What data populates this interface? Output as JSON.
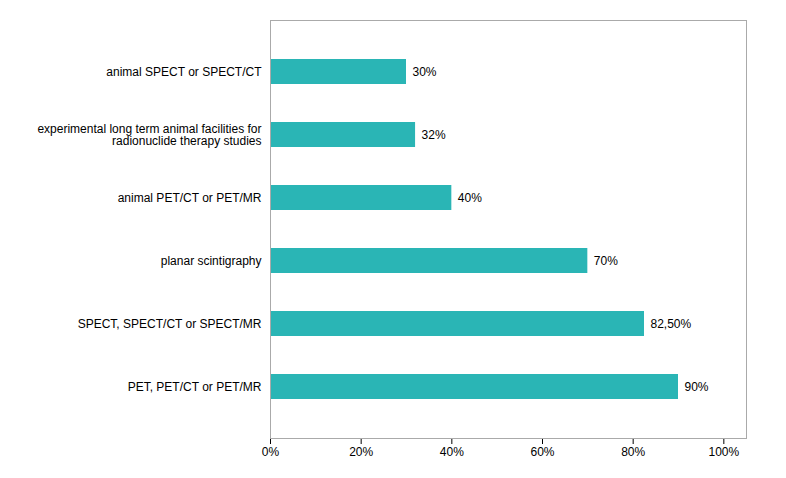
{
  "chart_data": {
    "type": "bar",
    "orientation": "horizontal",
    "categories": [
      "PET, PET/CT or PET/MR",
      "SPECT, SPECT/CT or SPECT/MR",
      "planar scintigraphy",
      "animal PET/CT or PET/MR",
      "experimental long term animal facilities for\nradionuclide therapy studies",
      "animal SPECT or SPECT/CT"
    ],
    "values": [
      90,
      82.5,
      70,
      40,
      32,
      30
    ],
    "value_labels": [
      "90%",
      "82,50%",
      "70%",
      "40%",
      "32%",
      "30%"
    ],
    "data_labels": true,
    "color": "#2ab5b5",
    "xlim": [
      0,
      105
    ],
    "xticks": [
      {
        "value": 0,
        "label": "0%"
      },
      {
        "value": 20,
        "label": "20%"
      },
      {
        "value": 40,
        "label": "40%"
      },
      {
        "value": 60,
        "label": "60%"
      },
      {
        "value": 80,
        "label": "80%"
      },
      {
        "value": 100,
        "label": "100%"
      }
    ],
    "grid": false
  }
}
